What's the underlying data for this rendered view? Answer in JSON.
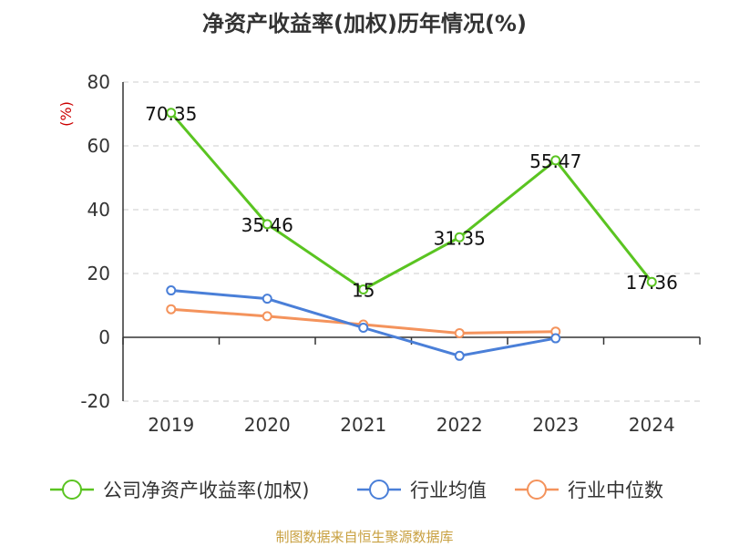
{
  "chart_data": {
    "type": "line",
    "title": "净资产收益率(加权)历年情况(%)",
    "ylabel": "(%)",
    "xlabel": "",
    "categories": [
      "2019",
      "2020",
      "2021",
      "2022",
      "2023",
      "2024"
    ],
    "ylim": [
      -20,
      80
    ],
    "yticks": [
      80,
      60,
      40,
      20,
      0,
      -20
    ],
    "grid": true,
    "legend_position": "bottom",
    "series": [
      {
        "name": "公司净资产收益率(加权)",
        "color": "#5ac421",
        "values": [
          70.35,
          35.46,
          15,
          31.35,
          55.47,
          17.36
        ],
        "labels": [
          "70.35",
          "35.46",
          "15",
          "31.35",
          "55.47",
          "17.36"
        ]
      },
      {
        "name": "行业均值",
        "color": "#4a7fd8",
        "values": [
          14.7,
          12.1,
          3.0,
          -5.8,
          -0.3,
          null
        ]
      },
      {
        "name": "行业中位数",
        "color": "#f4935c",
        "values": [
          8.8,
          6.6,
          4.0,
          1.3,
          1.8,
          null
        ]
      }
    ]
  },
  "source": "制图数据来自恒生聚源数据库",
  "colors": {
    "ylabel": "#cc0000",
    "source": "#c8a040",
    "grid": "#cccccc",
    "axis": "#333333"
  }
}
